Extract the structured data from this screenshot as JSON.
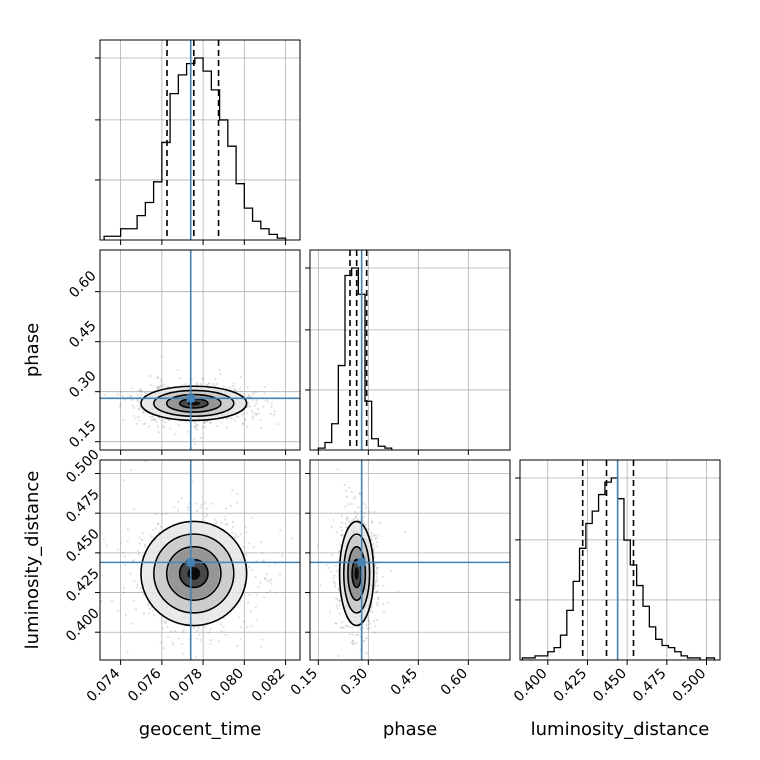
{
  "chart_data": {
    "type": "corner",
    "parameters": [
      "geocent_time",
      "phase",
      "luminosity_distance"
    ],
    "labels": {
      "geocent_time": "geocent_time",
      "phase": "phase",
      "luminosity_distance": "luminosity_distance"
    },
    "ranges": {
      "geocent_time": [
        0.073,
        0.0827
      ],
      "phase": [
        0.125,
        0.725
      ],
      "luminosity_distance": [
        0.3825,
        0.5085
      ]
    },
    "ticks": {
      "geocent_time": [
        "0.074",
        "0.076",
        "0.078",
        "0.080",
        "0.082"
      ],
      "phase": [
        "0.15",
        "0.30",
        "0.45",
        "0.60"
      ],
      "luminosity_distance": [
        "0.400",
        "0.425",
        "0.450",
        "0.475",
        "0.500"
      ]
    },
    "injection": {
      "geocent_time": 0.0774,
      "phase": 0.28,
      "luminosity_distance": 0.444
    },
    "quantiles": {
      "geocent_time": [
        0.07625,
        0.07755,
        0.07875
      ],
      "phase": [
        0.245,
        0.265,
        0.295
      ],
      "luminosity_distance": [
        0.422,
        0.437,
        0.454
      ]
    },
    "histograms": {
      "geocent_time": {
        "edges": [
          0.0732,
          0.074,
          0.0748,
          0.0752,
          0.0756,
          0.076,
          0.0764,
          0.0768,
          0.0772,
          0.0776,
          0.078,
          0.0784,
          0.0788,
          0.0792,
          0.0796,
          0.08,
          0.0804,
          0.0808,
          0.0812,
          0.0816,
          0.082
        ],
        "counts": [
          2,
          6,
          13,
          20,
          31,
          52,
          78,
          88,
          94,
          97,
          90,
          80,
          64,
          50,
          30,
          17,
          10,
          6,
          3,
          1
        ]
      },
      "phase": {
        "edges": [
          0.15,
          0.17,
          0.19,
          0.21,
          0.23,
          0.25,
          0.27,
          0.29,
          0.31,
          0.33,
          0.35,
          0.37
        ],
        "counts": [
          1,
          4,
          14,
          45,
          93,
          97,
          83,
          26,
          6,
          2,
          1
        ]
      },
      "luminosity_distance": {
        "edges": [
          0.384,
          0.392,
          0.4,
          0.404,
          0.408,
          0.412,
          0.416,
          0.42,
          0.424,
          0.428,
          0.432,
          0.436,
          0.44,
          0.444,
          0.448,
          0.452,
          0.456,
          0.46,
          0.464,
          0.468,
          0.472,
          0.476,
          0.48,
          0.484,
          0.488,
          0.492,
          0.496,
          0.5,
          0.505
        ],
        "counts": [
          1,
          2,
          4,
          6,
          12,
          24,
          38,
          54,
          66,
          72,
          80,
          86,
          88,
          78,
          58,
          46,
          36,
          26,
          16,
          10,
          7,
          6,
          4,
          2,
          1,
          1,
          0,
          1
        ]
      }
    },
    "grid": true,
    "colors": {
      "injection": "#4682b4",
      "histogram": "#000000",
      "quantile": "#000000",
      "sample": "#808080"
    }
  }
}
